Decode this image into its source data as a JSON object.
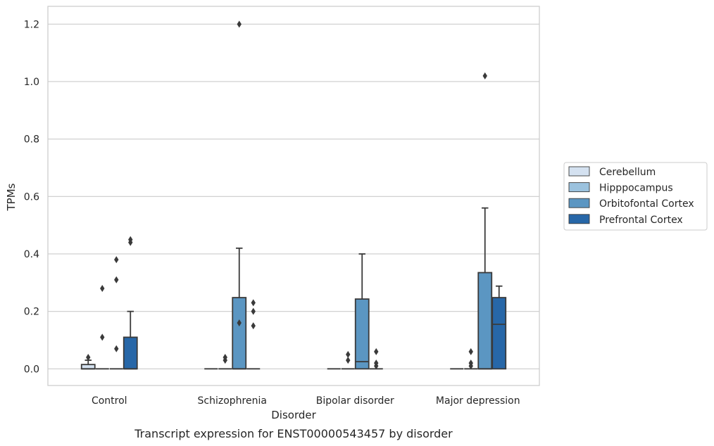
{
  "chart_data": {
    "type": "box",
    "title": "",
    "caption": "Transcript expression for ENST00000543457 by disorder",
    "xlabel": "Disorder",
    "ylabel": "TPMs",
    "ylim": [
      -0.058,
      1.262
    ],
    "yticks": [
      "0.0",
      "0.2",
      "0.4",
      "0.6",
      "0.8",
      "1.0",
      "1.2"
    ],
    "ytick_values": [
      0.0,
      0.2,
      0.4,
      0.6,
      0.8,
      1.0,
      1.2
    ],
    "grid": "horizontal",
    "legend_position": "right",
    "categories": [
      "Control",
      "Schizophrenia",
      "Bipolar disorder",
      "Major depression"
    ],
    "series": [
      {
        "name": "Cerebellum",
        "color": "#d4e1f0",
        "boxes": [
          {
            "q1": 0.0,
            "median": 0.0,
            "q3": 0.015,
            "whisker_low": 0.0,
            "whisker_high": 0.03,
            "outliers": [
              0.04
            ]
          },
          {
            "q1": 0.0,
            "median": 0.0,
            "q3": 0.0,
            "whisker_low": 0.0,
            "whisker_high": 0.0,
            "outliers": []
          },
          {
            "q1": 0.0,
            "median": 0.0,
            "q3": 0.0,
            "whisker_low": 0.0,
            "whisker_high": 0.0,
            "outliers": []
          },
          {
            "q1": 0.0,
            "median": 0.0,
            "q3": 0.0,
            "whisker_low": 0.0,
            "whisker_high": 0.0,
            "outliers": []
          }
        ]
      },
      {
        "name": "Hipppocampus",
        "color": "#9bc2de",
        "boxes": [
          {
            "q1": 0.0,
            "median": 0.0,
            "q3": 0.0,
            "whisker_low": 0.0,
            "whisker_high": 0.0,
            "outliers": [
              0.11,
              0.28
            ]
          },
          {
            "q1": 0.0,
            "median": 0.0,
            "q3": 0.0,
            "whisker_low": 0.0,
            "whisker_high": 0.0,
            "outliers": [
              0.03,
              0.04
            ]
          },
          {
            "q1": 0.0,
            "median": 0.0,
            "q3": 0.0,
            "whisker_low": 0.0,
            "whisker_high": 0.0,
            "outliers": [
              0.03,
              0.05
            ]
          },
          {
            "q1": 0.0,
            "median": 0.0,
            "q3": 0.0,
            "whisker_low": 0.0,
            "whisker_high": 0.0,
            "outliers": [
              0.01,
              0.02,
              0.06
            ]
          }
        ]
      },
      {
        "name": "Orbitofontal Cortex",
        "color": "#5b96c2",
        "boxes": [
          {
            "q1": 0.0,
            "median": 0.0,
            "q3": 0.0,
            "whisker_low": 0.0,
            "whisker_high": 0.0,
            "outliers": [
              0.07,
              0.31,
              0.38
            ]
          },
          {
            "q1": 0.0,
            "median": 0.0,
            "q3": 0.248,
            "whisker_low": 0.0,
            "whisker_high": 0.42,
            "outliers": [
              0.16,
              1.2
            ]
          },
          {
            "q1": 0.0,
            "median": 0.025,
            "q3": 0.243,
            "whisker_low": 0.0,
            "whisker_high": 0.4,
            "outliers": []
          },
          {
            "q1": 0.0,
            "median": 0.0,
            "q3": 0.335,
            "whisker_low": 0.0,
            "whisker_high": 0.56,
            "outliers": [
              1.02
            ]
          }
        ]
      },
      {
        "name": "Prefrontal Cortex",
        "color": "#2767a8",
        "boxes": [
          {
            "q1": 0.0,
            "median": 0.0,
            "q3": 0.11,
            "whisker_low": 0.0,
            "whisker_high": 0.2,
            "outliers": [
              0.44,
              0.45
            ]
          },
          {
            "q1": 0.0,
            "median": 0.0,
            "q3": 0.0,
            "whisker_low": 0.0,
            "whisker_high": 0.0,
            "outliers": [
              0.15,
              0.2,
              0.23
            ]
          },
          {
            "q1": 0.0,
            "median": 0.0,
            "q3": 0.0,
            "whisker_low": 0.0,
            "whisker_high": 0.0,
            "outliers": [
              0.01,
              0.02,
              0.06
            ]
          },
          {
            "q1": 0.0,
            "median": 0.155,
            "q3": 0.248,
            "whisker_low": 0.0,
            "whisker_high": 0.288,
            "outliers": []
          }
        ]
      }
    ]
  }
}
